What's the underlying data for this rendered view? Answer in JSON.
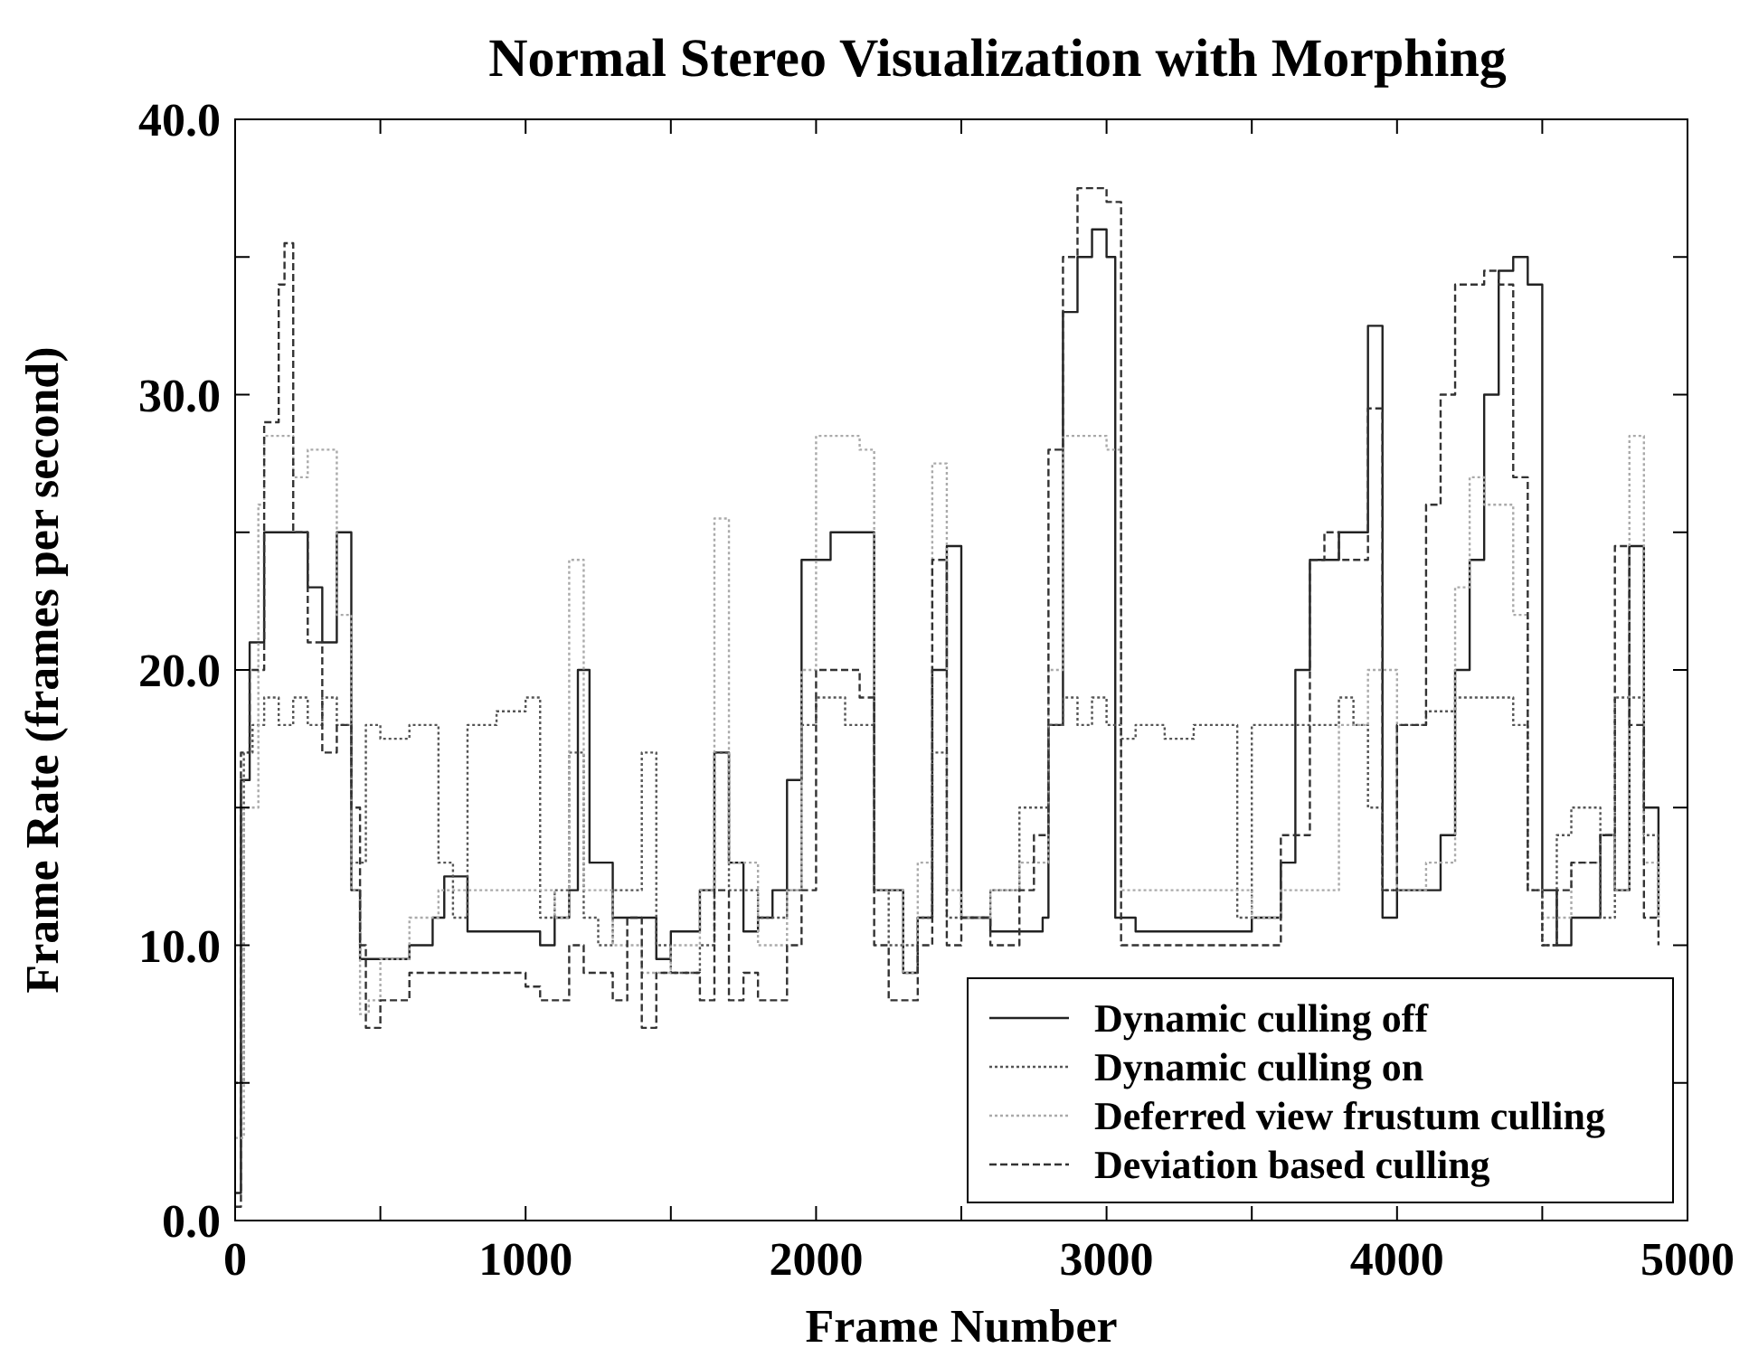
{
  "chart_data": {
    "type": "step",
    "title": "Normal Stereo Visualization with Morphing",
    "xlabel": "Frame Number",
    "ylabel": "Frame Rate (frames per second)",
    "xlim": [
      0,
      5000
    ],
    "xticks": [
      0,
      {
        "value": 500,
        "label": null
      },
      1000,
      {
        "value": 1500,
        "label": null
      },
      2000,
      {
        "value": 2500,
        "label": null
      },
      3000,
      {
        "value": 3500,
        "label": null
      },
      4000,
      {
        "value": 4500,
        "label": null
      },
      5000
    ],
    "ylim": [
      0,
      40
    ],
    "yticks": [
      {
        "value": 0,
        "label": "0.0"
      },
      {
        "value": 5,
        "label": null
      },
      {
        "value": 10,
        "label": "10.0"
      },
      {
        "value": 15,
        "label": null
      },
      {
        "value": 20,
        "label": "20.0"
      },
      {
        "value": 25,
        "label": null
      },
      {
        "value": 30,
        "label": "30.0"
      },
      {
        "value": 35,
        "label": null
      },
      {
        "value": 40,
        "label": "40.0"
      }
    ],
    "legend": "bottom right",
    "series": [
      {
        "name": "Dynamic culling off",
        "color": "#222222",
        "line_style": "solid",
        "x": [
          0,
          20,
          50,
          100,
          150,
          200,
          250,
          300,
          350,
          400,
          430,
          460,
          520,
          600,
          680,
          720,
          800,
          900,
          1000,
          1050,
          1100,
          1150,
          1180,
          1220,
          1300,
          1400,
          1450,
          1500,
          1600,
          1650,
          1700,
          1750,
          1800,
          1850,
          1900,
          1950,
          2050,
          2150,
          2200,
          2250,
          2300,
          2350,
          2400,
          2450,
          2500,
          2600,
          2700,
          2780,
          2800,
          2850,
          2900,
          2950,
          3000,
          3030,
          3100,
          3200,
          3300,
          3400,
          3450,
          3500,
          3600,
          3650,
          3700,
          3800,
          3850,
          3900,
          3950,
          4000,
          4100,
          4150,
          4200,
          4250,
          4300,
          4350,
          4400,
          4450,
          4500,
          4550,
          4600,
          4700,
          4750,
          4800,
          4850,
          4900
        ],
        "values": [
          1,
          16,
          21,
          25,
          25,
          25,
          23,
          21,
          25,
          12,
          9.5,
          9.5,
          9.5,
          10,
          11,
          12.5,
          10.5,
          10.5,
          10.5,
          10,
          11,
          12,
          20,
          13,
          11,
          11,
          9.5,
          10.5,
          12,
          17,
          13,
          10.5,
          11,
          12,
          16,
          24,
          25,
          25,
          12,
          12,
          9,
          11,
          20,
          24.5,
          11,
          10.5,
          10.5,
          11,
          18,
          33,
          35,
          36,
          35,
          11,
          10.5,
          10.5,
          10.5,
          10.5,
          10.5,
          11,
          13,
          20,
          24,
          25,
          25,
          32.5,
          11,
          12,
          12,
          14,
          20,
          24,
          30,
          34.5,
          35,
          34,
          12,
          10,
          11,
          14,
          12,
          24.5,
          15,
          11
        ]
      },
      {
        "name": "Dynamic culling on",
        "color": "#555555",
        "line_style": "dotted",
        "x": [
          0,
          30,
          60,
          100,
          150,
          200,
          250,
          300,
          350,
          400,
          450,
          500,
          600,
          700,
          750,
          800,
          900,
          1000,
          1050,
          1100,
          1150,
          1200,
          1250,
          1300,
          1400,
          1450,
          1500,
          1600,
          1650,
          1700,
          1800,
          1900,
          1950,
          2000,
          2050,
          2100,
          2200,
          2250,
          2300,
          2350,
          2400,
          2450,
          2500,
          2600,
          2700,
          2800,
          2850,
          2900,
          2950,
          3000,
          3050,
          3100,
          3200,
          3300,
          3400,
          3450,
          3500,
          3600,
          3700,
          3800,
          3850,
          3900,
          3950,
          4000,
          4100,
          4200,
          4300,
          4350,
          4400,
          4450,
          4500,
          4550,
          4600,
          4700,
          4750,
          4800,
          4850,
          4900
        ],
        "values": [
          5,
          17,
          18,
          19,
          18,
          19,
          18,
          19,
          18,
          13,
          18,
          17.5,
          18,
          13,
          11,
          18,
          18.5,
          19,
          11,
          12,
          17,
          11,
          10,
          12,
          17,
          10,
          9,
          10,
          17,
          12,
          11,
          12,
          18,
          19,
          19,
          18,
          12,
          10,
          10,
          11,
          17,
          11,
          11,
          12,
          15,
          18,
          19,
          18,
          19,
          18,
          17.5,
          18,
          17.5,
          18,
          18,
          11,
          18,
          18,
          18,
          19,
          18,
          15,
          12,
          18,
          18.5,
          19,
          19,
          19,
          18,
          12,
          10,
          14,
          15,
          11,
          19,
          19,
          14,
          11
        ]
      },
      {
        "name": "Deferred view frustum culling",
        "color": "#aaaaaa",
        "line_style": "dotted",
        "x": [
          0,
          30,
          80,
          100,
          150,
          200,
          250,
          300,
          350,
          400,
          430,
          460,
          500,
          600,
          700,
          800,
          900,
          1000,
          1100,
          1150,
          1200,
          1300,
          1400,
          1500,
          1600,
          1650,
          1700,
          1800,
          1900,
          1950,
          2000,
          2100,
          2150,
          2200,
          2300,
          2350,
          2400,
          2450,
          2500,
          2600,
          2700,
          2800,
          2850,
          2900,
          2950,
          3000,
          3050,
          3100,
          3200,
          3300,
          3400,
          3500,
          3600,
          3700,
          3800,
          3900,
          4000,
          4100,
          4200,
          4250,
          4300,
          4400,
          4450,
          4500,
          4600,
          4700,
          4750,
          4800,
          4850,
          4900
        ],
        "values": [
          3,
          15,
          26,
          28.5,
          28.5,
          27,
          28,
          28,
          22,
          12,
          7.5,
          8,
          9.5,
          11,
          12,
          12,
          12,
          12,
          11,
          24,
          12,
          10,
          9,
          10,
          12,
          25.5,
          13,
          10,
          12,
          20,
          28.5,
          28.5,
          28,
          12,
          9,
          13,
          27.5,
          12,
          11,
          12,
          13,
          20,
          28.5,
          28.5,
          28.5,
          28,
          12,
          12,
          12,
          12,
          12,
          11,
          12,
          12,
          18,
          20,
          12,
          13,
          23,
          27,
          26,
          22,
          12,
          11,
          13,
          14,
          12,
          28.5,
          13,
          11
        ]
      },
      {
        "name": "Deviation based culling",
        "color": "#333333",
        "line_style": "dashed",
        "x": [
          0,
          20,
          50,
          100,
          150,
          170,
          200,
          250,
          300,
          350,
          400,
          430,
          450,
          500,
          600,
          700,
          800,
          900,
          1000,
          1050,
          1100,
          1150,
          1200,
          1300,
          1350,
          1400,
          1450,
          1500,
          1600,
          1650,
          1700,
          1750,
          1800,
          1900,
          1950,
          2000,
          2100,
          2150,
          2200,
          2250,
          2300,
          2350,
          2400,
          2450,
          2500,
          2600,
          2700,
          2750,
          2800,
          2850,
          2900,
          2950,
          3000,
          3050,
          3100,
          3200,
          3300,
          3400,
          3500,
          3600,
          3700,
          3750,
          3800,
          3900,
          3950,
          4000,
          4100,
          4150,
          4200,
          4300,
          4350,
          4400,
          4450,
          4500,
          4550,
          4600,
          4700,
          4750,
          4800,
          4850,
          4900
        ],
        "values": [
          0.5,
          17,
          20,
          29,
          34,
          35.5,
          25,
          21,
          17,
          18,
          15,
          10,
          7,
          8,
          9,
          9,
          9,
          9,
          8.5,
          8,
          8,
          10,
          9,
          8,
          11,
          7,
          9,
          9,
          8,
          12,
          8,
          9,
          8,
          10,
          12,
          20,
          20,
          19,
          10,
          8,
          8,
          10,
          24,
          10,
          11,
          10,
          12,
          14,
          28,
          35,
          37.5,
          37.5,
          37,
          10,
          10,
          10,
          10,
          10,
          10,
          14,
          24,
          25,
          24,
          29.5,
          12,
          18,
          26,
          30,
          34,
          34.5,
          34,
          27,
          12,
          10,
          12,
          13,
          14,
          24.5,
          18,
          11,
          10
        ]
      }
    ]
  }
}
